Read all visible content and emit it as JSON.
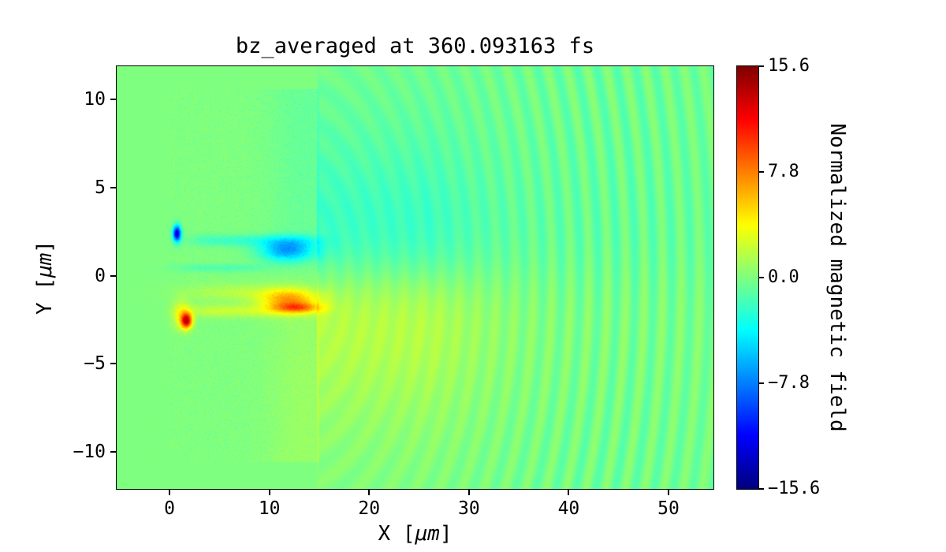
{
  "figure": {
    "title": "bz_averaged at 360.093163 fs",
    "background": "#ffffff"
  },
  "axes": {
    "xlabel": {
      "pre": "X [",
      "mu": "μm",
      "post": "]"
    },
    "ylabel": {
      "pre": "Y [",
      "mu": "μm",
      "post": "]"
    },
    "xtick_labels": [
      "0",
      "10",
      "20",
      "30",
      "40",
      "50"
    ],
    "ytick_labels": [
      "10",
      "5",
      "0",
      "−5",
      "−10"
    ]
  },
  "colorbar": {
    "label": "Normalized magnetic field",
    "tick_labels": [
      "15.6",
      "7.8",
      "0.0",
      "−7.8",
      "−15.6"
    ]
  },
  "chart_data": {
    "type": "heatmap",
    "title": "bz_averaged at 360.093163 fs",
    "quantity": "bz_averaged",
    "time_fs": 360.093163,
    "xlabel": "X [μm]",
    "ylabel": "Y [μm]",
    "xlim": [
      -5.3,
      54.5
    ],
    "ylim": [
      -12.1,
      11.9
    ],
    "xticks": [
      0,
      10,
      20,
      30,
      40,
      50
    ],
    "yticks": [
      10,
      5,
      0,
      -5,
      -10
    ],
    "colorbar": {
      "label": "Normalized magnetic field",
      "colormap": "jet",
      "vmin": -15.6,
      "vmax": 15.6,
      "ticks": [
        15.6,
        7.8,
        0.0,
        -7.8,
        -15.6
      ]
    },
    "features": [
      {
        "name": "background",
        "value": 0,
        "description": "near-zero field, uniform green"
      },
      {
        "name": "target-block",
        "x": [
          0,
          15
        ],
        "y": [
          -10.5,
          10.5
        ],
        "description": "speckled plasma target region"
      },
      {
        "name": "negative-filament",
        "x": [
          2.5,
          15
        ],
        "y": [
          0.8,
          2.3
        ],
        "peak": -9,
        "description": "blue Bz filament above laser axis, strongest blob near x=12, y=1.5"
      },
      {
        "name": "positive-filament",
        "x": [
          2,
          15
        ],
        "y": [
          -2.3,
          -0.8
        ],
        "peak": 10,
        "description": "orange/red Bz filament below laser axis, strongest blob near x=12, y=-1.4"
      },
      {
        "name": "negative-spot",
        "x": [
          0.4,
          1.2
        ],
        "y": [
          2.0,
          2.8
        ],
        "peak": -14,
        "description": "dark navy spot at channel entrance"
      },
      {
        "name": "positive-spot",
        "x": [
          1.0,
          2.4
        ],
        "y": [
          -3.0,
          -2.1
        ],
        "peak": 13,
        "description": "dark red crescent spot at channel entrance"
      },
      {
        "name": "asymmetric-lobes",
        "x": [
          15,
          40
        ],
        "peak": 2.4,
        "description": "cyan negative lobe in upper half and yellow-green positive lobe in lower half behind target rear edge x=15"
      },
      {
        "name": "wavefront-ripples",
        "center": [
          12,
          0
        ],
        "radius": [
          16,
          45
        ],
        "wavelength_um": 1.8,
        "amplitude": 1.4,
        "description": "concentric arcs of weak alternating field propagating to the right"
      }
    ]
  }
}
